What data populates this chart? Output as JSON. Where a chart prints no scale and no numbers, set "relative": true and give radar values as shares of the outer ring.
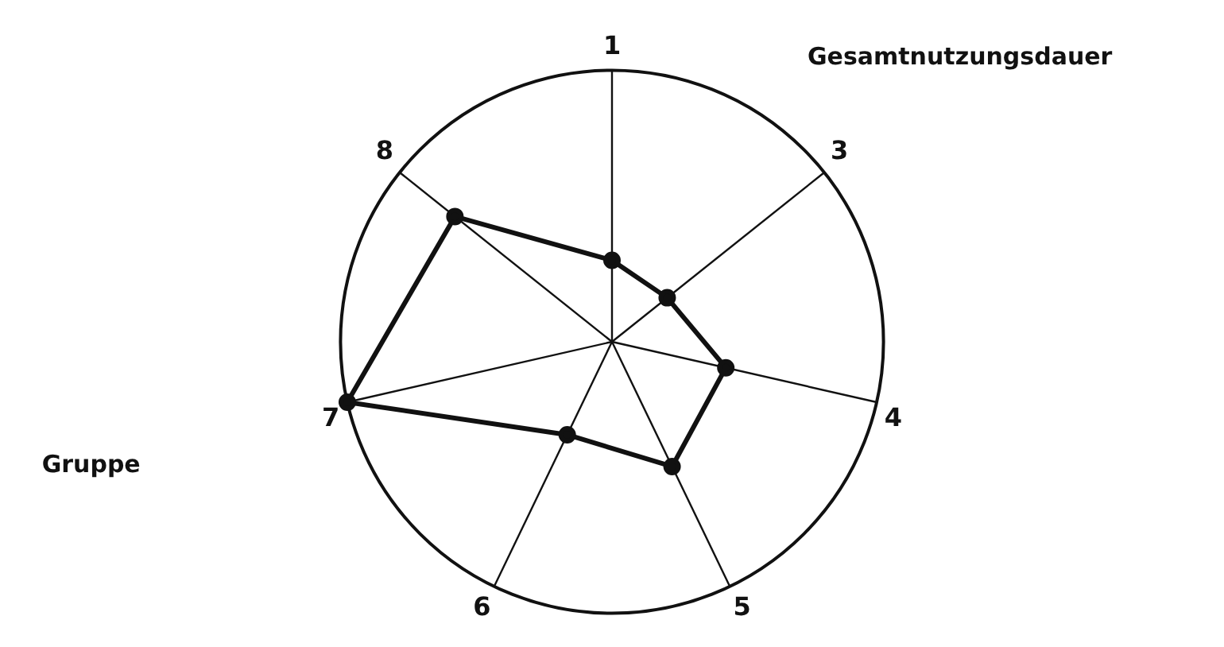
{
  "chart_data": {
    "type": "radar",
    "relative": true,
    "categories": [
      "1",
      "3",
      "4",
      "5",
      "6",
      "7",
      "8"
    ],
    "series": [
      {
        "color": "#111111",
        "values": [
          0.3,
          0.26,
          0.43,
          0.51,
          0.38,
          1.0,
          0.74
        ]
      }
    ],
    "marker": "circle",
    "line_style": "solid",
    "legend": false,
    "annotations": [
      "Gesamtnutzungsdauer",
      "Gruppe"
    ]
  }
}
